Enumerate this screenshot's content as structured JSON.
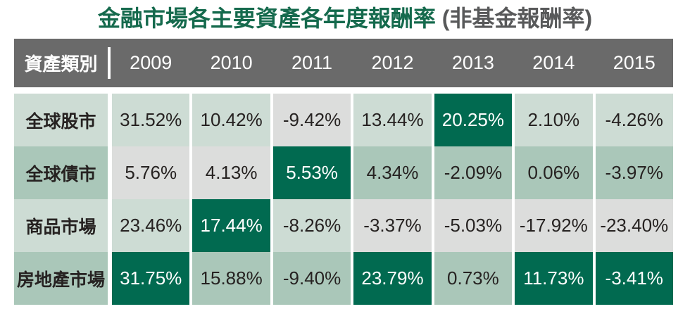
{
  "title": {
    "main": "金融市場各主要資產各年度報酬率",
    "suffix": " (非基金報酬率)"
  },
  "table": {
    "header_label": "資產類別",
    "years": [
      "2009",
      "2010",
      "2011",
      "2012",
      "2013",
      "2014",
      "2015"
    ],
    "rows": [
      {
        "label": "全球股市",
        "tone": "mint",
        "cells": [
          {
            "value": "31.52%",
            "tone": "mint"
          },
          {
            "value": "10.42%",
            "tone": "mint"
          },
          {
            "value": "-9.42%",
            "tone": "gray"
          },
          {
            "value": "13.44%",
            "tone": "mint"
          },
          {
            "value": "20.25%",
            "tone": "green"
          },
          {
            "value": "2.10%",
            "tone": "mint"
          },
          {
            "value": "-4.26%",
            "tone": "mint"
          }
        ]
      },
      {
        "label": "全球債市",
        "tone": "sage",
        "cells": [
          {
            "value": "5.76%",
            "tone": "gray"
          },
          {
            "value": "4.13%",
            "tone": "gray"
          },
          {
            "value": "5.53%",
            "tone": "green"
          },
          {
            "value": "4.34%",
            "tone": "sage"
          },
          {
            "value": "-2.09%",
            "tone": "sage"
          },
          {
            "value": "0.06%",
            "tone": "sage"
          },
          {
            "value": "-3.97%",
            "tone": "sage"
          }
        ]
      },
      {
        "label": "商品市場",
        "tone": "mint",
        "cells": [
          {
            "value": "23.46%",
            "tone": "mint"
          },
          {
            "value": "17.44%",
            "tone": "green"
          },
          {
            "value": "-8.26%",
            "tone": "mint"
          },
          {
            "value": "-3.37%",
            "tone": "gray"
          },
          {
            "value": "-5.03%",
            "tone": "gray"
          },
          {
            "value": "-17.92%",
            "tone": "gray"
          },
          {
            "value": "-23.40%",
            "tone": "gray"
          }
        ]
      },
      {
        "label": "房地產市場",
        "tone": "sage",
        "cells": [
          {
            "value": "31.75%",
            "tone": "green"
          },
          {
            "value": "15.88%",
            "tone": "sage"
          },
          {
            "value": "-9.40%",
            "tone": "sage"
          },
          {
            "value": "23.79%",
            "tone": "green"
          },
          {
            "value": "0.73%",
            "tone": "sage"
          },
          {
            "value": "11.73%",
            "tone": "green"
          },
          {
            "value": "-3.41%",
            "tone": "green"
          }
        ]
      }
    ]
  },
  "colors": {
    "title_green": "#156a4d",
    "title_gray": "#58595a",
    "header_bg": "#6a6a6a",
    "header_text": "#ffffff",
    "best_green": "#016a50",
    "row_mint": "#cddcd4",
    "row_sage": "#aac7b9",
    "worst_gray": "#dcdddc",
    "value_text": "#262221"
  },
  "chart_data": {
    "type": "table",
    "title": "金融市場各主要資產各年度報酬率 (非基金報酬率)",
    "columns": [
      "資產類別",
      "2009",
      "2010",
      "2011",
      "2012",
      "2013",
      "2014",
      "2015"
    ],
    "unit": "%",
    "series": [
      {
        "name": "全球股市",
        "values": [
          31.52,
          10.42,
          -9.42,
          13.44,
          20.25,
          2.1,
          -4.26
        ]
      },
      {
        "name": "全球債市",
        "values": [
          5.76,
          4.13,
          5.53,
          4.34,
          -2.09,
          0.06,
          -3.97
        ]
      },
      {
        "name": "商品市場",
        "values": [
          23.46,
          17.44,
          -8.26,
          -3.37,
          -5.03,
          -17.92,
          -23.4
        ]
      },
      {
        "name": "房地產市場",
        "values": [
          31.75,
          15.88,
          -9.4,
          23.79,
          0.73,
          11.73,
          -3.41
        ]
      }
    ],
    "highlight_best_per_year": [
      "房地產市場",
      "商品市場",
      "全球債市",
      "房地產市場",
      "全球股市",
      "房地產市場",
      "房地產市場"
    ],
    "highlight_worst_per_year": [
      "全球債市",
      "全球債市",
      "全球股市",
      "商品市場",
      "商品市場",
      "商品市場",
      "商品市場"
    ],
    "legend_semantics": {
      "green_cell": "best asset of year (white text)",
      "gray_cell": "worst asset of year"
    }
  }
}
